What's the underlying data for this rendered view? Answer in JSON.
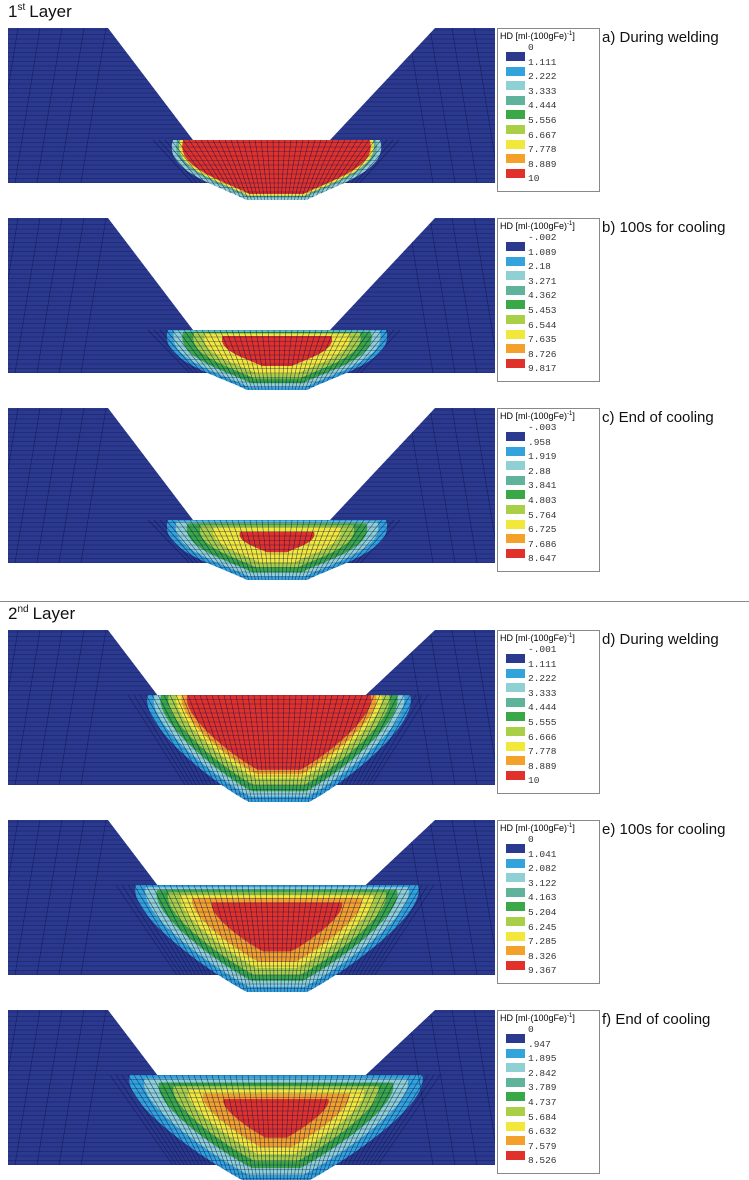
{
  "legend_title": {
    "text": "HD [ml·(100gFe)",
    "exponent": "-1",
    "close": "]"
  },
  "sections": [
    {
      "heading": {
        "number": "1",
        "ordinal": "st",
        "word": "Layer"
      },
      "panels": [
        {
          "caption": "a) During welding",
          "legend": [
            "0",
            "1.111",
            "2.222",
            "3.333",
            "4.444",
            "5.556",
            "6.667",
            "7.778",
            "8.889",
            "10"
          ]
        },
        {
          "caption": "b) 100s for cooling",
          "legend": [
            "-.002",
            "1.089",
            "2.18",
            "3.271",
            "4.362",
            "5.453",
            "6.544",
            "7.635",
            "8.726",
            "9.817"
          ]
        },
        {
          "caption": "c) End of cooling",
          "legend": [
            "-.003",
            ".958",
            "1.919",
            "2.88",
            "3.841",
            "4.803",
            "5.764",
            "6.725",
            "7.686",
            "8.647"
          ]
        }
      ]
    },
    {
      "heading": {
        "number": "2",
        "ordinal": "nd",
        "word": "Layer"
      },
      "panels": [
        {
          "caption": "d) During welding",
          "legend": [
            "-.001",
            "1.111",
            "2.222",
            "3.333",
            "4.444",
            "5.555",
            "6.666",
            "7.778",
            "8.889",
            "10"
          ]
        },
        {
          "caption": "e) 100s for cooling",
          "legend": [
            "0",
            "1.041",
            "2.082",
            "3.122",
            "4.163",
            "5.204",
            "6.245",
            "7.285",
            "8.326",
            "9.367"
          ]
        },
        {
          "caption": "f) End of cooling",
          "legend": [
            "0",
            ".947",
            "1.895",
            "2.842",
            "3.789",
            "4.737",
            "5.684",
            "6.632",
            "7.579",
            "8.526"
          ]
        }
      ]
    }
  ]
}
